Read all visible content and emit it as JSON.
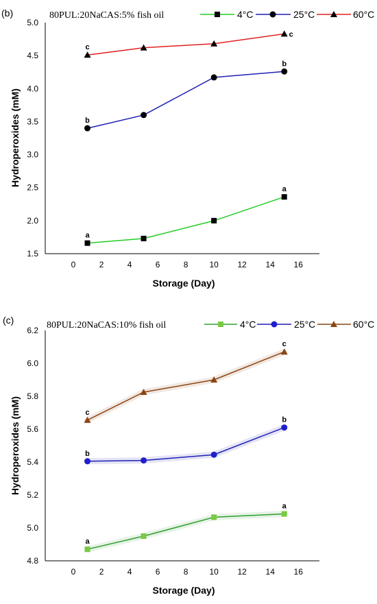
{
  "chart_data": [
    {
      "type": "line",
      "panel_label": "(b)",
      "title": "80PUL:20NaCAS:5% fish oil",
      "xlabel": "Storage (Day)",
      "ylabel": "Hydroperoxides (mM)",
      "xlim": [
        -2,
        17.5
      ],
      "ylim": [
        1.5,
        5.0
      ],
      "xticks": [
        "0",
        "2",
        "4",
        "6",
        "8",
        "10",
        "12",
        "14",
        "16"
      ],
      "yticks": [
        "1.5",
        "2.0",
        "2.5",
        "3.0",
        "3.5",
        "4.0",
        "4.5",
        "5.0"
      ],
      "x": [
        1,
        5,
        10,
        15
      ],
      "legend_position": "top",
      "grid": false,
      "series": [
        {
          "name": "4°C",
          "values": [
            1.66,
            1.73,
            2.0,
            2.36
          ],
          "color": "#22cc22",
          "marker_color": "#000000",
          "marker": "square",
          "annotation": "a"
        },
        {
          "name": "25°C",
          "values": [
            3.4,
            3.6,
            4.17,
            4.26
          ],
          "color": "#1f1fb4",
          "marker_color": "#000000",
          "marker": "circle",
          "annotation": "b"
        },
        {
          "name": "60°C",
          "values": [
            4.51,
            4.62,
            4.68,
            4.83
          ],
          "color": "#e02020",
          "marker_color": "#000000",
          "marker": "triangle",
          "annotation": "c"
        }
      ]
    },
    {
      "type": "line",
      "panel_label": "(c)",
      "title": "80PUL:20NaCAS:10% fish oil",
      "xlabel": "Storage (Day)",
      "ylabel": "Hydroperoxides (mM)",
      "xlim": [
        -2,
        17.5
      ],
      "ylim": [
        4.8,
        6.2
      ],
      "xticks": [
        "0",
        "2",
        "4",
        "6",
        "8",
        "10",
        "12",
        "14",
        "16"
      ],
      "yticks": [
        "4.8",
        "5.0",
        "5.2",
        "5.4",
        "5.6",
        "5.8",
        "6.0",
        "6.2"
      ],
      "x": [
        1,
        5,
        10,
        15
      ],
      "legend_position": "top",
      "grid": false,
      "series": [
        {
          "name": "4°C",
          "values": [
            4.87,
            4.95,
            5.065,
            5.085
          ],
          "color": "#2e9e2e",
          "marker_color": "#7ac943",
          "marker": "square",
          "annotation": "a"
        },
        {
          "name": "25°C",
          "values": [
            5.405,
            5.41,
            5.445,
            5.61
          ],
          "color": "#1f1fb4",
          "marker_color": "#1f1fcc",
          "marker": "circle",
          "annotation": "b"
        },
        {
          "name": "60°C",
          "values": [
            5.655,
            5.825,
            5.9,
            6.07
          ],
          "color": "#8b4513",
          "marker_color": "#8b4513",
          "marker": "triangle",
          "annotation": "c"
        }
      ]
    }
  ]
}
